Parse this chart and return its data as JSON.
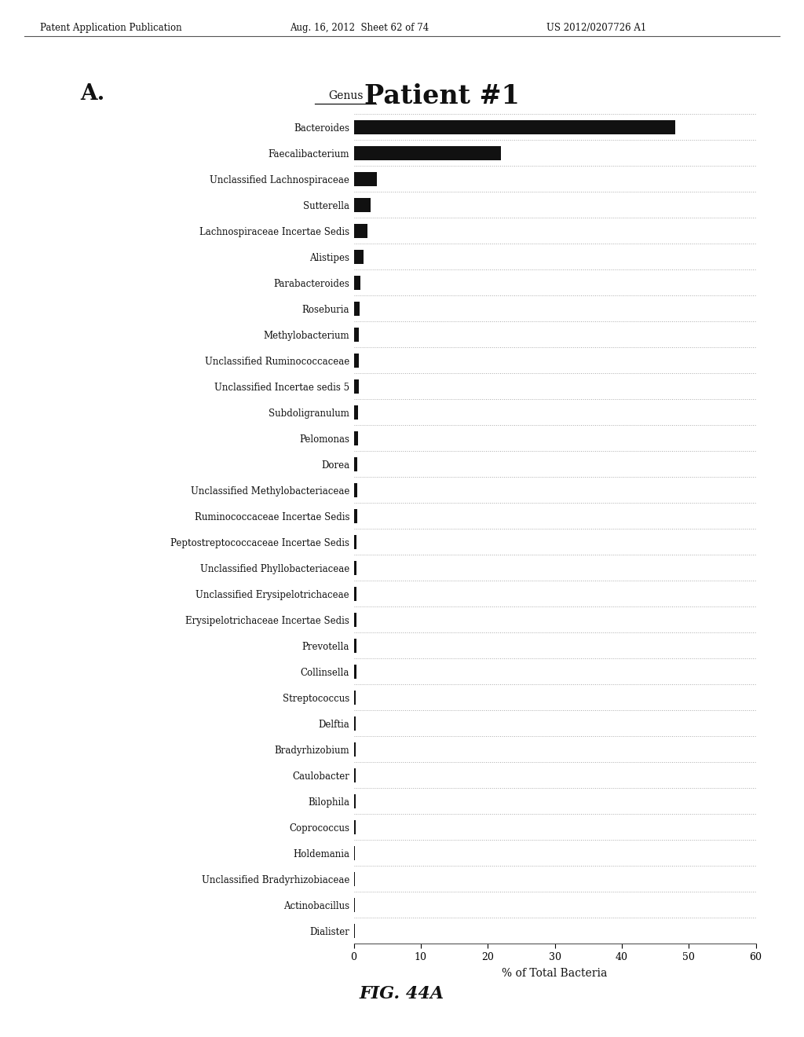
{
  "title": "Patient #1",
  "panel_label": "A.",
  "fig_label": "FIG. 44A",
  "xlabel": "% of Total Bacteria",
  "ylabel_header": "Genus",
  "patent_header_left": "Patent Application Publication",
  "patent_header_mid": "Aug. 16, 2012  Sheet 62 of 74",
  "patent_header_right": "US 2012/0207726 A1",
  "xlim": [
    0,
    60
  ],
  "xticks": [
    0,
    10,
    20,
    30,
    40,
    50,
    60
  ],
  "categories": [
    "Bacteroides",
    "Faecalibacterium",
    "Unclassified Lachnospiraceae",
    "Sutterella",
    "Lachnospiraceae Incertae Sedis",
    "Alistipes",
    "Parabacteroides",
    "Roseburia",
    "Methylobacterium",
    "Unclassified Ruminococcaceae",
    "Unclassified Incertae sedis 5",
    "Subdoligranulum",
    "Pelomonas",
    "Dorea",
    "Unclassified Methylobacteriaceae",
    "Ruminococcaceae Incertae Sedis",
    "Peptostreptococcaceae Incertae Sedis",
    "Unclassified Phyllobacteriaceae",
    "Unclassified Erysipelotrichaceae",
    "Erysipelotrichaceae Incertae Sedis",
    "Prevotella",
    "Collinsella",
    "Streptococcus",
    "Delftia",
    "Bradyrhizobium",
    "Caulobacter",
    "Bilophila",
    "Coprococcus",
    "Holdemania",
    "Unclassified Bradyrhizobiaceae",
    "Actinobacillus",
    "Dialister"
  ],
  "values": [
    48.0,
    22.0,
    3.5,
    2.5,
    2.0,
    1.4,
    1.0,
    0.9,
    0.8,
    0.75,
    0.7,
    0.65,
    0.6,
    0.55,
    0.5,
    0.48,
    0.46,
    0.44,
    0.42,
    0.4,
    0.38,
    0.36,
    0.34,
    0.32,
    0.3,
    0.28,
    0.26,
    0.24,
    0.22,
    0.2,
    0.18,
    0.16
  ],
  "bar_color": "#111111",
  "grid_color": "#aaaaaa",
  "bg_color": "#ffffff",
  "font_size_labels": 8.5,
  "font_size_xlabel": 10,
  "font_size_xticks": 9,
  "bar_height": 0.55
}
